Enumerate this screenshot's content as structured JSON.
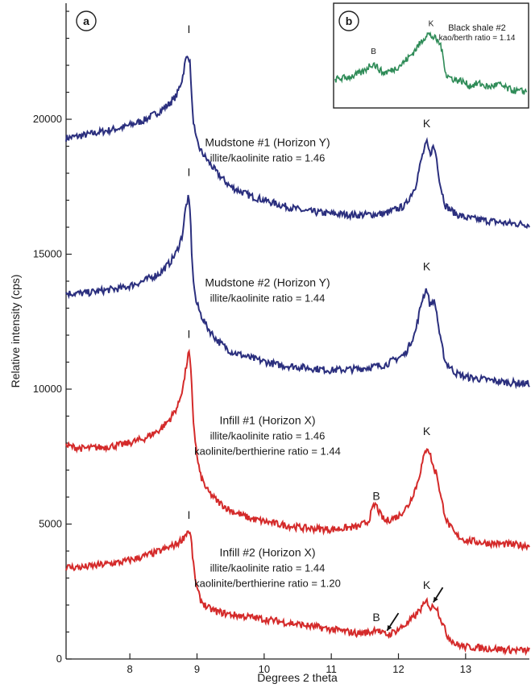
{
  "chart_data": [
    {
      "panel_tag": "a",
      "type": "line",
      "xlabel": "Degrees 2 theta",
      "ylabel": "Relative intensity (cps)",
      "xlim": [
        7.05,
        13.95
      ],
      "ylim": [
        0,
        24300
      ],
      "x_ticks": [
        8,
        9,
        10,
        11,
        12,
        13
      ],
      "y_ticks": [
        0,
        5000,
        10000,
        15000,
        20000
      ],
      "grid": false,
      "series": [
        {
          "color": "#2b2f7e",
          "x": [
            7.05,
            7.3,
            7.6,
            7.9,
            8.2,
            8.45,
            8.6,
            8.7,
            8.78,
            8.83,
            8.87,
            8.9,
            8.93,
            8.98,
            9.05,
            9.15,
            9.3,
            9.5,
            9.8,
            10.2,
            10.6,
            11.0,
            11.4,
            11.8,
            12.1,
            12.25,
            12.35,
            12.42,
            12.47,
            12.52,
            12.56,
            12.62,
            12.7,
            12.85,
            13.0,
            13.3,
            13.6,
            13.95
          ],
          "values": [
            19300,
            19400,
            19550,
            19700,
            19950,
            20300,
            20600,
            20900,
            21500,
            22200,
            22400,
            22000,
            20300,
            19300,
            18850,
            18500,
            18000,
            17500,
            17150,
            16850,
            16600,
            16500,
            16450,
            16500,
            16800,
            17500,
            18600,
            19150,
            18700,
            19000,
            18700,
            17600,
            16800,
            16500,
            16350,
            16250,
            16150,
            16100
          ],
          "peak_labels": [
            {
              "text": "I",
              "x": 8.88,
              "y": 23200
            },
            {
              "text": "K",
              "x": 12.42,
              "y": 19700
            }
          ],
          "annotation": {
            "lines": [
              "Mudstone #1 (Horizon Y)",
              "illite/kaolinite ratio = 1.46"
            ],
            "x": 10.05,
            "y": 19000
          }
        },
        {
          "color": "#2b2f7e",
          "x": [
            7.05,
            7.3,
            7.6,
            7.9,
            8.2,
            8.45,
            8.6,
            8.7,
            8.78,
            8.83,
            8.87,
            8.9,
            8.93,
            8.98,
            9.05,
            9.15,
            9.3,
            9.5,
            9.8,
            10.2,
            10.6,
            11.0,
            11.4,
            11.8,
            12.1,
            12.25,
            12.35,
            12.42,
            12.47,
            12.52,
            12.56,
            12.62,
            12.7,
            12.85,
            13.0,
            13.3,
            13.6,
            13.95
          ],
          "values": [
            13550,
            13550,
            13650,
            13750,
            14000,
            14300,
            14700,
            15100,
            15700,
            16700,
            17100,
            16500,
            14500,
            13300,
            12800,
            12300,
            11800,
            11400,
            11150,
            10900,
            10800,
            10700,
            10750,
            10900,
            11300,
            12100,
            13300,
            13750,
            13100,
            13300,
            13000,
            11900,
            11000,
            10600,
            10450,
            10350,
            10250,
            10200
          ],
          "peak_labels": [
            {
              "text": "I",
              "x": 8.88,
              "y": 17900
            },
            {
              "text": "K",
              "x": 12.42,
              "y": 14400
            }
          ],
          "annotation": {
            "lines": [
              "Mudstone #2 (Horizon Y)",
              "illite/kaolinite ratio = 1.44"
            ],
            "x": 10.05,
            "y": 13800
          }
        },
        {
          "color": "#d42a2a",
          "x": [
            7.05,
            7.3,
            7.6,
            7.9,
            8.2,
            8.45,
            8.6,
            8.72,
            8.8,
            8.85,
            8.88,
            8.91,
            8.95,
            9.0,
            9.05,
            9.15,
            9.3,
            9.5,
            9.8,
            10.2,
            10.6,
            11.0,
            11.4,
            11.55,
            11.62,
            11.66,
            11.72,
            11.8,
            12.0,
            12.15,
            12.28,
            12.38,
            12.43,
            12.48,
            12.53,
            12.57,
            12.63,
            12.72,
            12.85,
            13.0,
            13.3,
            13.6,
            13.95
          ],
          "values": [
            7900,
            7800,
            7850,
            7950,
            8150,
            8500,
            8900,
            9400,
            10200,
            11000,
            11400,
            10600,
            8700,
            7500,
            6800,
            6250,
            5850,
            5500,
            5200,
            5000,
            4850,
            4800,
            4900,
            5100,
            5600,
            5750,
            5400,
            5100,
            5300,
            5700,
            6500,
            7500,
            7900,
            7500,
            7000,
            6900,
            6000,
            5100,
            4600,
            4400,
            4300,
            4250,
            4200
          ],
          "peak_labels": [
            {
              "text": "I",
              "x": 8.88,
              "y": 11900
            },
            {
              "text": "K",
              "x": 12.42,
              "y": 8300
            },
            {
              "text": "B",
              "x": 11.67,
              "y": 5900
            }
          ],
          "annotation": {
            "lines": [
              "Infill #1 (Horizon X)",
              "illite/kaolinite ratio = 1.46",
              "kaolinite/berthierine ratio = 1.44"
            ],
            "x": 10.05,
            "y": 8700
          }
        },
        {
          "color": "#d42a2a",
          "x": [
            7.05,
            7.3,
            7.6,
            7.9,
            8.2,
            8.45,
            8.6,
            8.72,
            8.8,
            8.85,
            8.88,
            8.91,
            8.95,
            9.0,
            9.05,
            9.15,
            9.3,
            9.5,
            9.8,
            10.2,
            10.6,
            11.0,
            11.4,
            11.6,
            11.67,
            11.75,
            11.85,
            12.0,
            12.15,
            12.28,
            12.38,
            12.43,
            12.48,
            12.53,
            12.57,
            12.63,
            12.72,
            12.85,
            13.0,
            13.3,
            13.6,
            13.95
          ],
          "values": [
            3400,
            3400,
            3500,
            3600,
            3800,
            4000,
            4150,
            4300,
            4500,
            4700,
            4750,
            4500,
            3400,
            2600,
            2200,
            1900,
            1750,
            1650,
            1550,
            1400,
            1250,
            1100,
            950,
            1000,
            1150,
            950,
            900,
            1100,
            1350,
            1700,
            2000,
            2150,
            1850,
            2000,
            1900,
            1500,
            900,
            550,
            450,
            400,
            350,
            300
          ],
          "peak_labels": [
            {
              "text": "I",
              "x": 8.88,
              "y": 5200
            },
            {
              "text": "K",
              "x": 12.42,
              "y": 2600
            },
            {
              "text": "B",
              "x": 11.67,
              "y": 1400
            }
          ],
          "annotation": {
            "lines": [
              "Infill #2 (Horizon X)",
              "illite/kaolinite ratio = 1.44",
              "kaolinite/berthierine ratio = 1.20"
            ],
            "x": 10.05,
            "y": 3800
          }
        }
      ]
    },
    {
      "panel_tag": "b",
      "type": "line",
      "series": [
        {
          "name": "Black shale #2",
          "color": "#2e8b57",
          "x": [
            0,
            0.05,
            0.1,
            0.15,
            0.18,
            0.2,
            0.22,
            0.25,
            0.3,
            0.35,
            0.4,
            0.45,
            0.48,
            0.5,
            0.52,
            0.55,
            0.58,
            0.62,
            0.66,
            0.7,
            0.75,
            0.8,
            0.85,
            0.9,
            0.95,
            1.0
          ],
          "values": [
            0.3,
            0.32,
            0.35,
            0.4,
            0.48,
            0.5,
            0.45,
            0.38,
            0.42,
            0.5,
            0.62,
            0.78,
            0.88,
            0.85,
            0.82,
            0.74,
            0.35,
            0.3,
            0.28,
            0.22,
            0.25,
            0.2,
            0.24,
            0.18,
            0.15,
            0.15
          ]
        }
      ],
      "peak_labels": [
        {
          "text": "B",
          "x": 0.2
        },
        {
          "text": "K",
          "x": 0.5
        }
      ],
      "annotation": {
        "lines": [
          "Black shale #2",
          "kao/berth ratio = 1.14"
        ]
      }
    }
  ]
}
